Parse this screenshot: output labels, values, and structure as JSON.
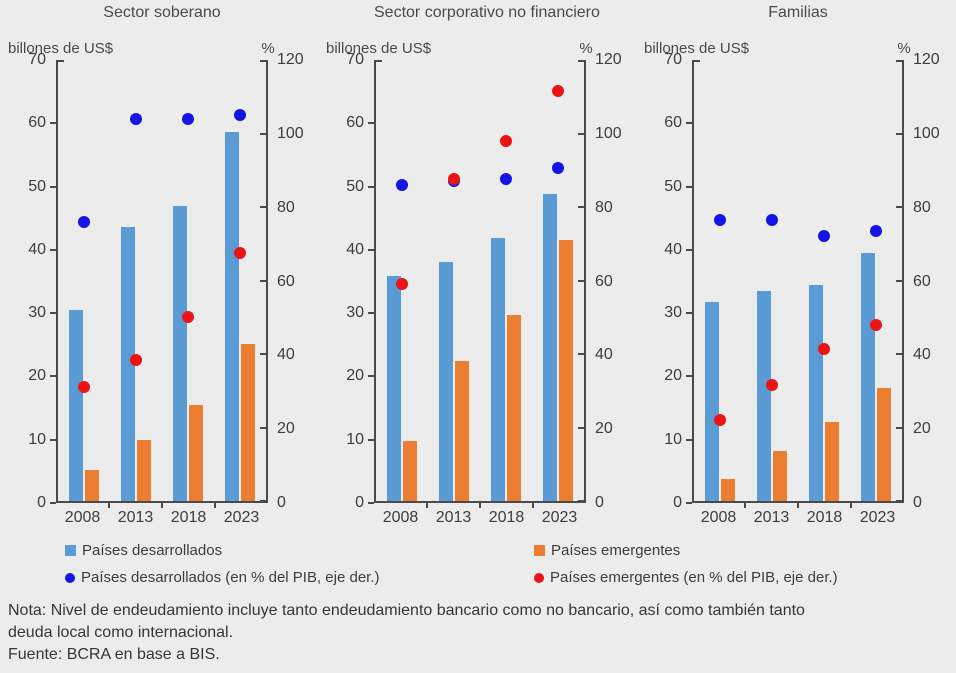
{
  "colors": {
    "background": "#ECECEC",
    "axis": "#4a4a4a",
    "developed_bar": "#5B9BD5",
    "emerging_bar": "#ED7D31",
    "developed_dot": "#1414E6",
    "emerging_dot": "#EB1414"
  },
  "legend": [
    {
      "type": "square",
      "color": "#5B9BD5",
      "label": "Países desarrollados"
    },
    {
      "type": "square",
      "color": "#ED7D31",
      "label": "Países emergentes"
    },
    {
      "type": "circle",
      "color": "#1414E6",
      "label": "Países desarrollados (en % del PIB, eje der.)"
    },
    {
      "type": "circle",
      "color": "#EB1414",
      "label": "Países emergentes (en % del PIB, eje der.)"
    }
  ],
  "notes": {
    "line1": "Nota: Nivel de endeudamiento incluye tanto endeudamiento bancario como no bancario, así como también tanto",
    "line2": "deuda local como internacional.",
    "source": "Fuente: BCRA en base a BIS."
  },
  "chart_data": [
    {
      "type": "bar+scatter",
      "title": "Sector soberano",
      "categories": [
        "2008",
        "2013",
        "2018",
        "2023"
      ],
      "left_axis": {
        "label": "billones de US$",
        "min": 0,
        "max": 70,
        "ticks": [
          0,
          10,
          20,
          30,
          40,
          50,
          60,
          70
        ]
      },
      "right_axis": {
        "label": "%",
        "min": 0,
        "max": 120,
        "ticks": [
          0,
          20,
          40,
          60,
          80,
          100,
          120
        ]
      },
      "series": [
        {
          "name": "Países desarrollados",
          "kind": "bar",
          "axis": "left",
          "color": "#5B9BD5",
          "values": [
            30.3,
            43.5,
            46.8,
            58.5
          ]
        },
        {
          "name": "Países emergentes",
          "kind": "bar",
          "axis": "left",
          "color": "#ED7D31",
          "values": [
            5.0,
            9.7,
            15.2,
            25.0
          ]
        },
        {
          "name": "Países desarrollados (en % del PIB, eje der.)",
          "kind": "dot",
          "axis": "right",
          "color": "#1414E6",
          "values": [
            76,
            104,
            104,
            105
          ]
        },
        {
          "name": "Países emergentes (en % del PIB, eje der.)",
          "kind": "dot",
          "axis": "right",
          "color": "#EB1414",
          "values": [
            31,
            38.5,
            50,
            67.5
          ]
        }
      ]
    },
    {
      "type": "bar+scatter",
      "title": "Sector corporativo no financiero",
      "categories": [
        "2008",
        "2013",
        "2018",
        "2023"
      ],
      "left_axis": {
        "label": "billones de US$",
        "min": 0,
        "max": 70,
        "ticks": [
          0,
          10,
          20,
          30,
          40,
          50,
          60,
          70
        ]
      },
      "right_axis": {
        "label": "%",
        "min": 0,
        "max": 120,
        "ticks": [
          0,
          20,
          40,
          60,
          80,
          100,
          120
        ]
      },
      "series": [
        {
          "name": "Países desarrollados",
          "kind": "bar",
          "axis": "left",
          "color": "#5B9BD5",
          "values": [
            35.7,
            38.0,
            41.7,
            48.7
          ]
        },
        {
          "name": "Países emergentes",
          "kind": "bar",
          "axis": "left",
          "color": "#ED7D31",
          "values": [
            9.5,
            22.2,
            29.6,
            41.4
          ]
        },
        {
          "name": "Países desarrollados (en % del PIB, eje der.)",
          "kind": "dot",
          "axis": "right",
          "color": "#1414E6",
          "values": [
            86,
            87,
            87.5,
            90.5
          ]
        },
        {
          "name": "Países emergentes (en % del PIB, eje der.)",
          "kind": "dot",
          "axis": "right",
          "color": "#EB1414",
          "values": [
            59,
            87.5,
            98,
            111.5
          ]
        }
      ]
    },
    {
      "type": "bar+scatter",
      "title": "Familias",
      "categories": [
        "2008",
        "2013",
        "2018",
        "2023"
      ],
      "left_axis": {
        "label": "billones de US$",
        "min": 0,
        "max": 70,
        "ticks": [
          0,
          10,
          20,
          30,
          40,
          50,
          60,
          70
        ]
      },
      "right_axis": {
        "label": "%",
        "min": 0,
        "max": 120,
        "ticks": [
          0,
          20,
          40,
          60,
          80,
          100,
          120
        ]
      },
      "series": [
        {
          "name": "Países desarrollados",
          "kind": "bar",
          "axis": "left",
          "color": "#5B9BD5",
          "values": [
            31.6,
            33.4,
            34.3,
            39.3
          ]
        },
        {
          "name": "Países emergentes",
          "kind": "bar",
          "axis": "left",
          "color": "#ED7D31",
          "values": [
            3.5,
            8.0,
            12.6,
            17.9
          ]
        },
        {
          "name": "Países desarrollados (en % del PIB, eje der.)",
          "kind": "dot",
          "axis": "right",
          "color": "#1414E6",
          "values": [
            76.5,
            76.5,
            72,
            73.5
          ]
        },
        {
          "name": "Países emergentes (en % del PIB, eje der.)",
          "kind": "dot",
          "axis": "right",
          "color": "#EB1414",
          "values": [
            22,
            31.5,
            41.5,
            48
          ]
        }
      ]
    }
  ]
}
